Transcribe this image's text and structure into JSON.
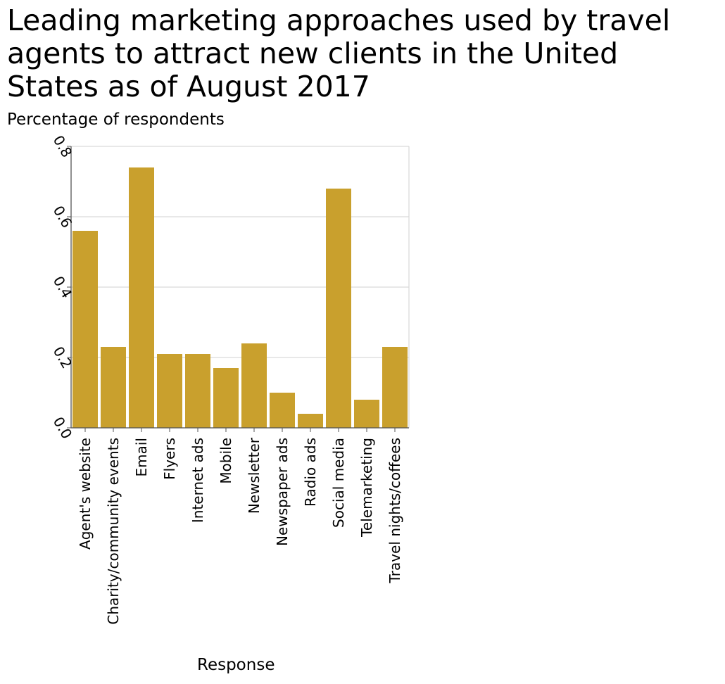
{
  "chart_data": {
    "type": "bar",
    "title": "Leading marketing approaches used by travel agents to attract new clients in the United States as of August 2017",
    "ylabel": "Percentage of respondents",
    "xlabel": "Response",
    "categories": [
      "Agent's website",
      "Charity/community events",
      "Email",
      "Flyers",
      "Internet ads",
      "Mobile",
      "Newsletter",
      "Newspaper ads",
      "Radio ads",
      "Social media",
      "Telemarketing",
      "Travel nights/coffees"
    ],
    "values": [
      0.56,
      0.23,
      0.74,
      0.21,
      0.21,
      0.17,
      0.24,
      0.1,
      0.04,
      0.68,
      0.08,
      0.23
    ],
    "ylim": [
      0,
      0.8
    ],
    "yticks": [
      "0.0",
      "0.2",
      "0.4",
      "0.6",
      "0.8"
    ],
    "grid": true,
    "bar_color": "#c9a02d",
    "grid_color": "#d9d9d9",
    "axis_color": "#555555"
  }
}
